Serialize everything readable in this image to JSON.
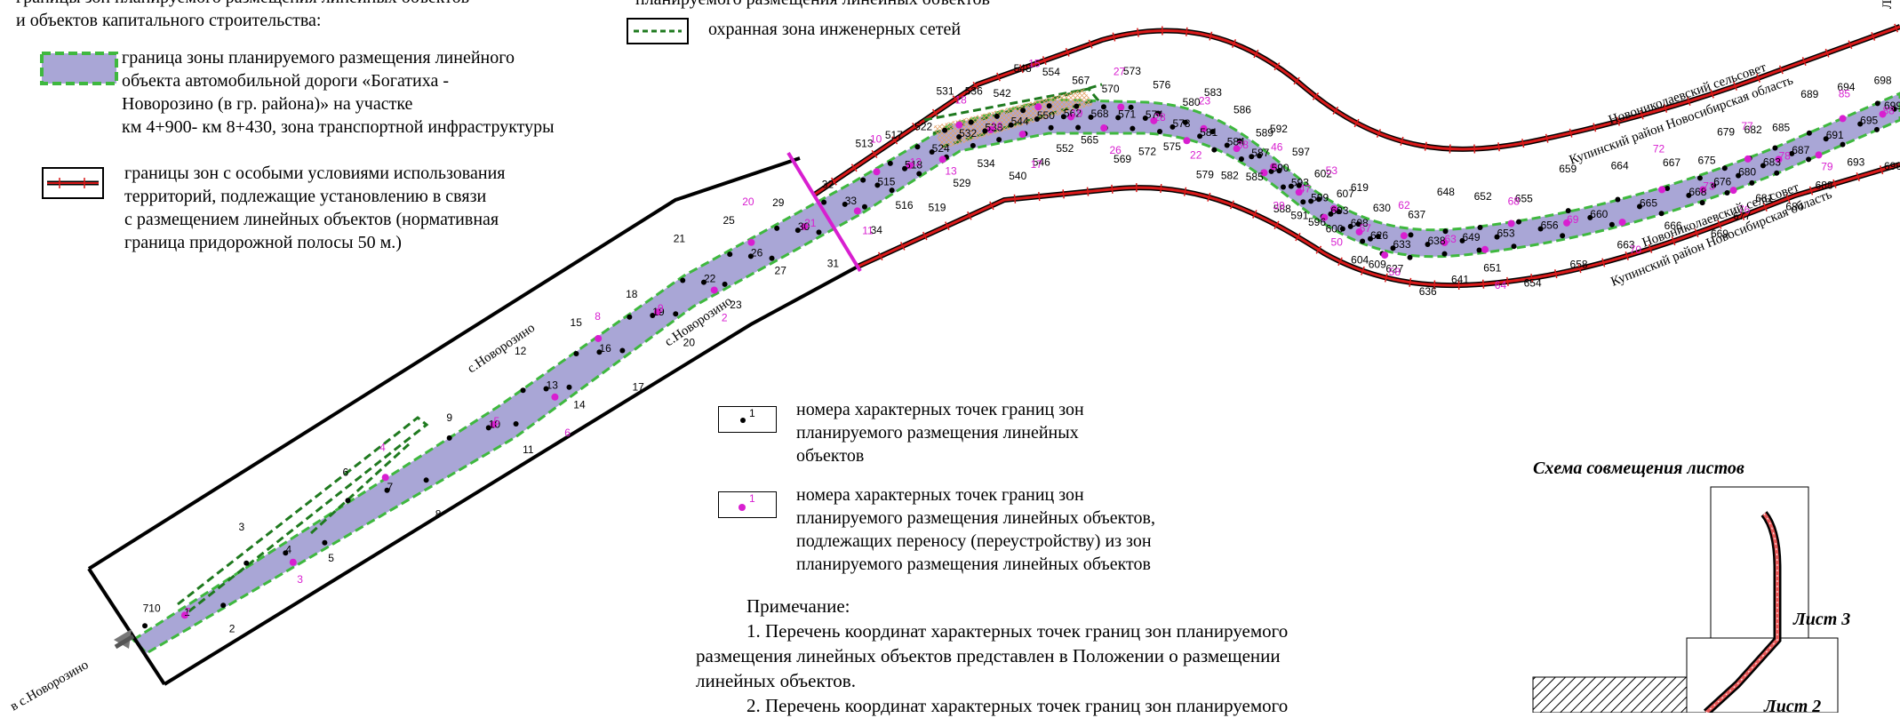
{
  "legend": {
    "top_cut_1": "границы зон планируемого размещения линейных объектов",
    "top_cut_2": "и объектов капитального строительства:",
    "top_right_cut": "планируемого размещения линейных объектов",
    "utility_zone": "охранная зона инженерных сетей",
    "zone_item": [
      "граница зоны планируемого размещения линейного",
      "объекта автомобильной  дороги «Богатиха -",
      "Новорозино (в гр. района)» на участке",
      "км 4+900- км 8+430, зона транспортной инфраструктуры"
    ],
    "restricted_item": [
      "границы зон с особыми условиями использования",
      "территорий, подлежащие установлению в связи",
      "с размещением линейных объектов (нормативная",
      "граница придорожной полосы 50 м.)"
    ],
    "points_item": [
      "номера характерных точек границ зон",
      "планируемого размещения линейных",
      "объектов"
    ],
    "points_item_marker": "1",
    "relocate_item": [
      "номера характерных точек границ зон",
      "планируемого размещения линейных объектов,",
      "подлежащих переносу (переустройству) из зон",
      "планируемого размещения линейных объектов"
    ],
    "relocate_item_marker": "1"
  },
  "note": {
    "title": "Примечание:",
    "lines": [
      "1. Перечень координат характерных точек границ зон планируемого",
      "размещения линейных объектов  представлен в Положении о размещении",
      "линейных объектов.",
      "2. Перечень координат характерных точек границ зон планируемого"
    ]
  },
  "scheme": {
    "title": "Схема совмещения листов",
    "sheet3": "Лист 3",
    "sheet2": "Лист 2"
  },
  "map": {
    "places": {
      "novorozino_a": "с.Новорозино",
      "novorozino_b": "с.Новорозино",
      "to_novorozino": "в с.Новорозино",
      "council_top": "Новониколаевский сельсовет",
      "district_top": "Купинский район Новосибирская область",
      "council_bottom": "Новониколаевский сельсовет",
      "district_bottom": "Купинский район Новосибирская область",
      "corner": "Л"
    },
    "colors": {
      "zone_fill": "#a9a6d6",
      "zone_border": "#3fb83f",
      "restricted": "#d91a1a",
      "utility": "#1f7a1f",
      "relocate": "#d81fd0"
    },
    "labels_black": [
      "710",
      "1",
      "2",
      "3",
      "4",
      "5",
      "6",
      "7",
      "8",
      "9",
      "10",
      "11",
      "12",
      "13",
      "14",
      "15",
      "16",
      "17",
      "18",
      "19",
      "20",
      "21",
      "22",
      "23",
      "25",
      "26",
      "27",
      "29",
      "30",
      "31",
      "32",
      "33",
      "34",
      "513",
      "515",
      "516",
      "517",
      "518",
      "519",
      "522",
      "524",
      "529",
      "531",
      "532",
      "534",
      "536",
      "538",
      "540",
      "542",
      "544",
      "546",
      "548",
      "550",
      "552",
      "554",
      "562",
      "565",
      "567",
      "568",
      "569",
      "570",
      "571",
      "572",
      "573",
      "574",
      "575",
      "576",
      "578",
      "579",
      "580",
      "581",
      "582",
      "583",
      "584",
      "585",
      "586",
      "587",
      "588",
      "589",
      "590",
      "591",
      "592",
      "593",
      "596",
      "597",
      "599",
      "600",
      "602",
      "603",
      "604",
      "607",
      "608",
      "609",
      "619",
      "626",
      "627",
      "630",
      "633",
      "636",
      "637",
      "638",
      "641",
      "648",
      "649",
      "651",
      "652",
      "653",
      "654",
      "655",
      "656",
      "658",
      "659",
      "660",
      "663",
      "664",
      "665",
      "666",
      "667",
      "668",
      "669",
      "675",
      "676",
      "677",
      "679",
      "680",
      "681",
      "682",
      "683",
      "684",
      "685",
      "687",
      "688",
      "689",
      "691",
      "693",
      "694",
      "695",
      "696",
      "698",
      "699"
    ],
    "labels_magenta": [
      "7",
      "3",
      "4",
      "5",
      "6",
      "8",
      "9",
      "2",
      "20",
      "21",
      "11",
      "10",
      "12",
      "13",
      "18",
      "16",
      "17",
      "15",
      "19",
      "26",
      "27",
      "28",
      "22",
      "23",
      "38",
      "39",
      "46",
      "47",
      "50",
      "53",
      "57",
      "58",
      "62",
      "63",
      "64",
      "68",
      "69",
      "70",
      "72",
      "73",
      "76",
      "77",
      "78",
      "79",
      "85",
      "88"
    ]
  }
}
